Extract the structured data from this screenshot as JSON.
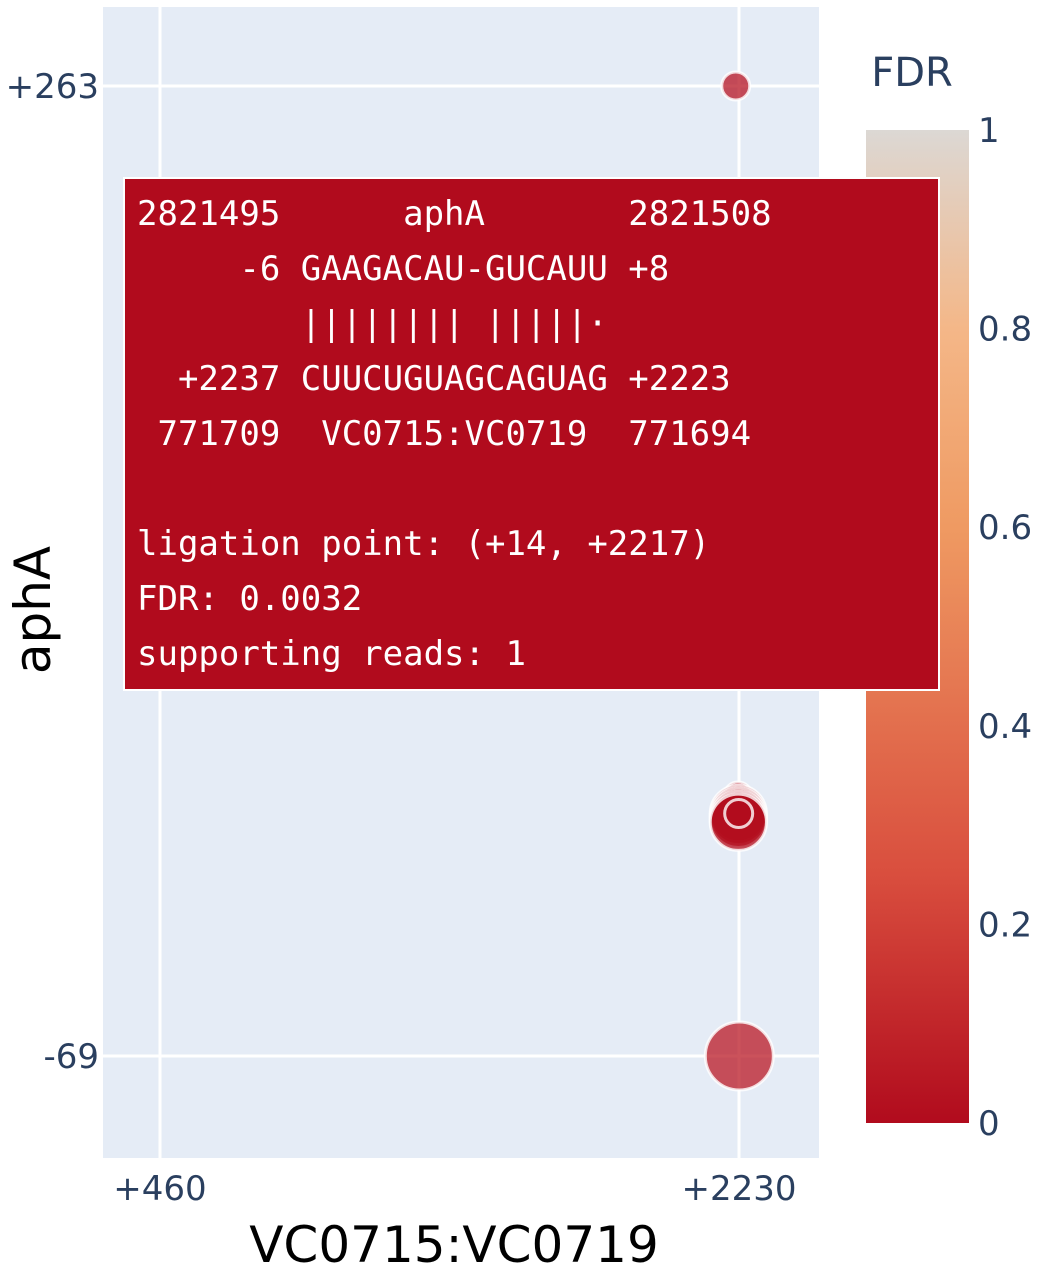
{
  "chart_data": {
    "type": "scatter",
    "xlabel": "VC0715:VC0719",
    "ylabel": "aphA",
    "x_ticks": [
      "+460",
      "+2230"
    ],
    "y_ticks": [
      "+263",
      "-69"
    ],
    "grid": true,
    "points": [
      {
        "x": 2220,
        "y": 263,
        "fdr": 0.03,
        "reads": 1
      },
      {
        "x": 2227,
        "y": 20,
        "fdr": 0.03,
        "reads": 1
      },
      {
        "x": 2217,
        "y": 14,
        "fdr": 0.0032,
        "reads": 1
      },
      {
        "x": 2228,
        "y": 14,
        "fdr": 0.01,
        "reads": 3
      },
      {
        "x": 2228,
        "y": 13,
        "fdr": 0.01,
        "reads": 3
      },
      {
        "x": 2228,
        "y": 12,
        "fdr": 0.01,
        "reads": 3
      },
      {
        "x": 2228,
        "y": 11,
        "fdr": 0.01,
        "reads": 3
      },
      {
        "x": 2229,
        "y": 14,
        "fdr": 0.0032,
        "reads": 1
      },
      {
        "x": 2231,
        "y": -69,
        "fdr": 0.05,
        "reads": 5
      }
    ],
    "colorbar": {
      "title": "FDR",
      "ticks": [
        "0",
        "0.2",
        "0.4",
        "0.6",
        "0.8",
        "1"
      ],
      "range": [
        0,
        1
      ],
      "colors": [
        "#b10b1d",
        "#d94e3e",
        "#ef9a62",
        "#f4b788",
        "#dcd8d4"
      ]
    }
  },
  "hover": {
    "lines": [
      "2821495      aphA       2821508",
      "     -6 GAAGACAU-GUCAUU +8",
      "        |||||||| |||||·",
      "  +2237 CUUCUGUAGCAGUAG +2223",
      " 771709  VC0715:VC0719  771694",
      "",
      "ligation point: (+14, +2217)",
      "FDR: 0.0032",
      "supporting reads: 1"
    ]
  }
}
